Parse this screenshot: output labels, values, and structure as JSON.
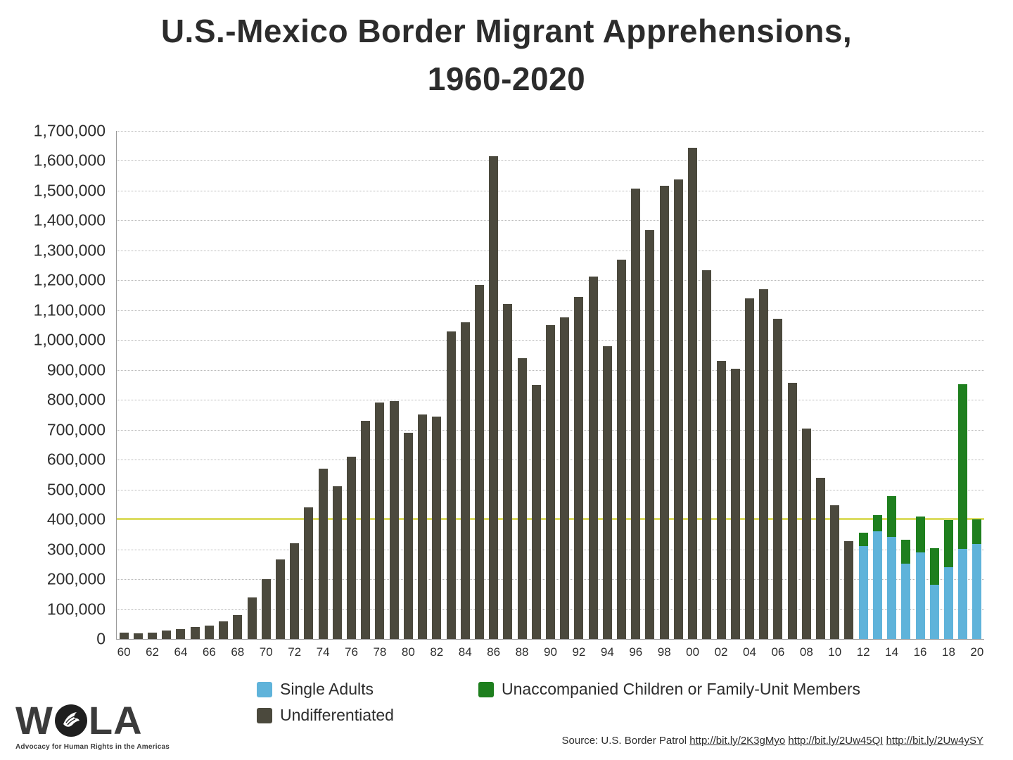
{
  "title": {
    "line1": "U.S.-Mexico Border Migrant Apprehensions,",
    "line2": "1960-2020"
  },
  "chart_data": {
    "type": "bar",
    "stacked": true,
    "title": "U.S.-Mexico Border Migrant Apprehensions, 1960-2020",
    "ylim": [
      0,
      1700000
    ],
    "ytick_interval": 100000,
    "grid": "dotted-horizontal",
    "legend_position": "bottom",
    "reference_line": {
      "value": 400000,
      "color": "#dcdd63"
    },
    "years": [
      1960,
      1961,
      1962,
      1963,
      1964,
      1965,
      1966,
      1967,
      1968,
      1969,
      1970,
      1971,
      1972,
      1973,
      1974,
      1975,
      1976,
      1977,
      1978,
      1979,
      1980,
      1981,
      1982,
      1983,
      1984,
      1985,
      1986,
      1987,
      1988,
      1989,
      1990,
      1991,
      1992,
      1993,
      1994,
      1995,
      1996,
      1997,
      1998,
      1999,
      2000,
      2001,
      2002,
      2003,
      2004,
      2005,
      2006,
      2007,
      2008,
      2009,
      2010,
      2011,
      2012,
      2013,
      2014,
      2015,
      2016,
      2017,
      2018,
      2019,
      2020
    ],
    "xtick_labels": [
      "60",
      "62",
      "64",
      "66",
      "68",
      "70",
      "72",
      "74",
      "76",
      "78",
      "80",
      "82",
      "84",
      "86",
      "88",
      "90",
      "92",
      "94",
      "96",
      "98",
      "00",
      "02",
      "04",
      "06",
      "08",
      "10",
      "12",
      "14",
      "16",
      "18",
      "20"
    ],
    "series": [
      {
        "name": "Single Adults",
        "color": "#5fb3da",
        "values": [
          0,
          0,
          0,
          0,
          0,
          0,
          0,
          0,
          0,
          0,
          0,
          0,
          0,
          0,
          0,
          0,
          0,
          0,
          0,
          0,
          0,
          0,
          0,
          0,
          0,
          0,
          0,
          0,
          0,
          0,
          0,
          0,
          0,
          0,
          0,
          0,
          0,
          0,
          0,
          0,
          0,
          0,
          0,
          0,
          0,
          0,
          0,
          0,
          0,
          0,
          0,
          0,
          310000,
          360000,
          342000,
          251000,
          290000,
          181000,
          240000,
          302000,
          318000
        ]
      },
      {
        "name": "Unaccompanied Children or Family-Unit Members",
        "color": "#1e7f1e",
        "values": [
          0,
          0,
          0,
          0,
          0,
          0,
          0,
          0,
          0,
          0,
          0,
          0,
          0,
          0,
          0,
          0,
          0,
          0,
          0,
          0,
          0,
          0,
          0,
          0,
          0,
          0,
          0,
          0,
          0,
          0,
          0,
          0,
          0,
          0,
          0,
          0,
          0,
          0,
          0,
          0,
          0,
          0,
          0,
          0,
          0,
          0,
          0,
          0,
          0,
          0,
          0,
          0,
          45000,
          54000,
          137000,
          80000,
          119000,
          123000,
          157000,
          550000,
          83000
        ]
      },
      {
        "name": "Undifferentiated",
        "color": "#4b493d",
        "values": [
          21000,
          20000,
          21500,
          28500,
          33500,
          40000,
          45000,
          60000,
          80000,
          140000,
          200000,
          265000,
          320000,
          440000,
          570000,
          510000,
          610000,
          730000,
          790000,
          795000,
          690000,
          750000,
          745000,
          1030000,
          1060000,
          1185000,
          1615000,
          1120000,
          940000,
          850000,
          1050000,
          1075000,
          1145000,
          1212000,
          980000,
          1270000,
          1507000,
          1368000,
          1516000,
          1537000,
          1643000,
          1235000,
          930000,
          905000,
          1139000,
          1171000,
          1071000,
          858000,
          705000,
          540000,
          447000,
          327000,
          0,
          0,
          0,
          0,
          0,
          0,
          0,
          0,
          0
        ]
      }
    ]
  },
  "legend": [
    {
      "label": "Single Adults",
      "color": "#5fb3da"
    },
    {
      "label": "Unaccompanied Children or Family-Unit Members",
      "color": "#1e7f1e"
    },
    {
      "label": "Undifferentiated",
      "color": "#4b493d"
    }
  ],
  "footer": {
    "source_prefix": "Source: U.S. Border Patrol",
    "links": [
      "http://bit.ly/2K3gMyo",
      "http://bit.ly/2Uw45QI",
      "http://bit.ly/2Uw4ySY"
    ],
    "logo": {
      "text_w": "W",
      "text_la": "LA",
      "tagline": "Advocacy for Human Rights in the Americas"
    }
  }
}
